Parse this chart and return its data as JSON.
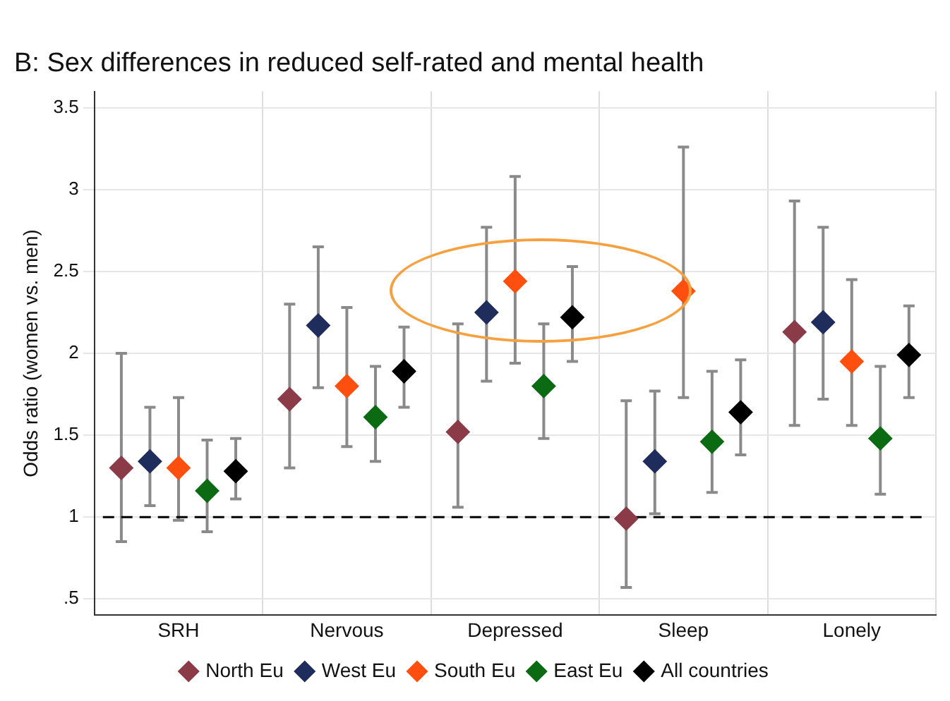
{
  "chart_data": {
    "type": "scatter",
    "title": "B: Sex differences in reduced self-rated and mental health",
    "ylabel": "Odds ratio (women vs. men)",
    "categories": [
      "SRH",
      "Nervous",
      "Depressed",
      "Sleep",
      "Lonely"
    ],
    "series": [
      {
        "name": "North Eu",
        "color": "#8b3a47",
        "values": [
          1.3,
          1.72,
          1.52,
          0.99,
          2.13
        ],
        "errors": [
          [
            0.85,
            2.0
          ],
          [
            1.3,
            2.3
          ],
          [
            1.06,
            2.18
          ],
          [
            0.57,
            1.71
          ],
          [
            1.56,
            2.93
          ]
        ]
      },
      {
        "name": "West Eu",
        "color": "#1f2d5c",
        "values": [
          1.34,
          2.17,
          2.25,
          1.34,
          2.19
        ],
        "errors": [
          [
            1.07,
            1.67
          ],
          [
            1.79,
            2.65
          ],
          [
            1.83,
            2.77
          ],
          [
            1.02,
            1.77
          ],
          [
            1.72,
            2.77
          ]
        ]
      },
      {
        "name": "South Eu",
        "color": "#ff4f0f",
        "values": [
          1.3,
          1.8,
          2.44,
          2.38,
          1.95
        ],
        "errors": [
          [
            0.98,
            1.73
          ],
          [
            1.43,
            2.28
          ],
          [
            1.94,
            3.08
          ],
          [
            1.73,
            3.26
          ],
          [
            1.56,
            2.45
          ]
        ]
      },
      {
        "name": "East Eu",
        "color": "#0a6b12",
        "values": [
          1.16,
          1.61,
          1.8,
          1.46,
          1.48
        ],
        "errors": [
          [
            0.91,
            1.47
          ],
          [
            1.34,
            1.92
          ],
          [
            1.48,
            2.18
          ],
          [
            1.15,
            1.89
          ],
          [
            1.14,
            1.92
          ]
        ]
      },
      {
        "name": "All countries",
        "color": "#000000",
        "values": [
          1.28,
          1.89,
          2.22,
          1.64,
          1.99
        ],
        "errors": [
          [
            1.11,
            1.48
          ],
          [
            1.67,
            2.16
          ],
          [
            1.95,
            2.53
          ],
          [
            1.38,
            1.96
          ],
          [
            1.73,
            2.29
          ]
        ]
      }
    ],
    "ylim": [
      0.4,
      3.6
    ],
    "yticks": [
      {
        "value": 0.5,
        "label": ".5"
      },
      1,
      1.5,
      2,
      2.5,
      3,
      3.5
    ],
    "ref_lines": [
      {
        "axis": "y",
        "value": 1,
        "color": "#000000",
        "line_style": "dashed"
      }
    ],
    "grid": true,
    "legend": "bottom",
    "marker": "diamond"
  }
}
